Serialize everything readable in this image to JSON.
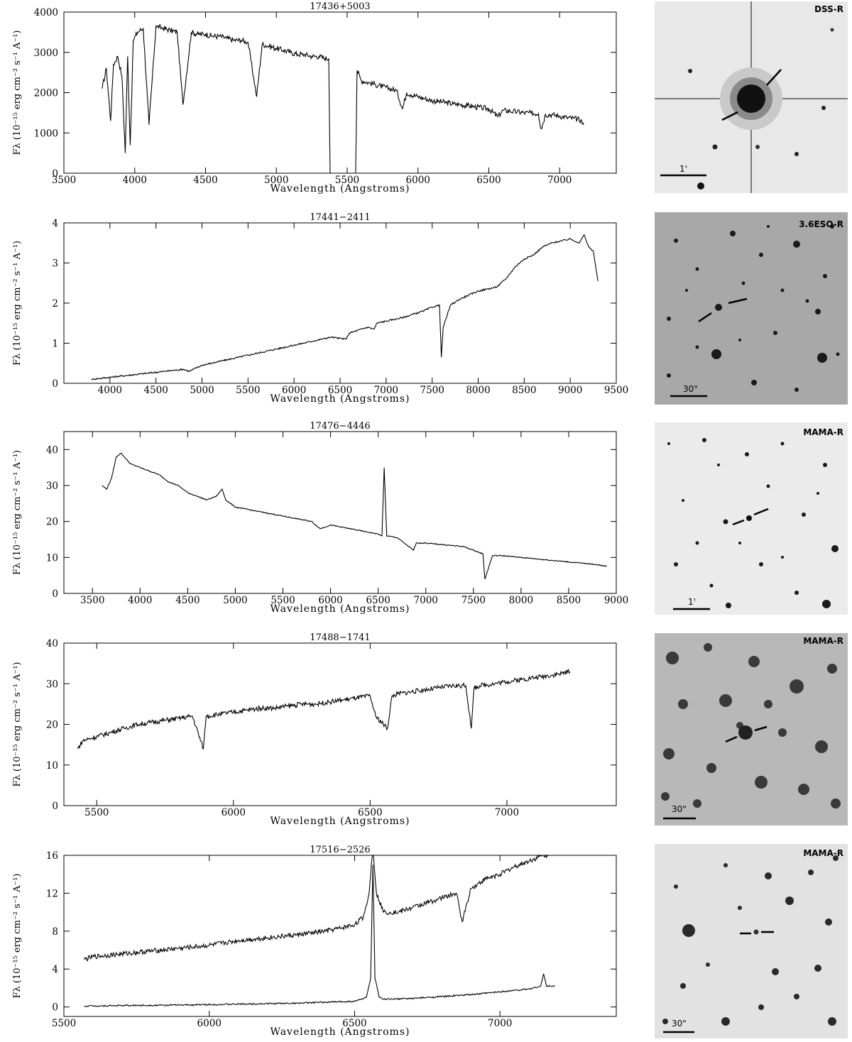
{
  "chart_data": [
    {
      "type": "line",
      "title": "17436+5003",
      "xlabel": "Wavelength (Angstroms)",
      "ylabel": "Fλ (10⁻¹⁵ erg cm⁻² s⁻¹ A⁻¹)",
      "xlim": [
        3500,
        7400
      ],
      "ylim": [
        0,
        4000
      ],
      "xticks": [
        3500,
        4000,
        4500,
        5000,
        5500,
        6000,
        6500,
        7000
      ],
      "yticks": [
        0,
        1000,
        2000,
        3000,
        4000
      ],
      "series": [
        {
          "x": [
            3770,
            3800,
            3830,
            3850,
            3880,
            3910,
            3933,
            3950,
            3968,
            3990,
            4020,
            4060,
            4101,
            4150,
            4200,
            4250,
            4300,
            4340,
            4400,
            4450,
            4500,
            4550,
            4600,
            4650,
            4700,
            4750,
            4800,
            4861,
            4900,
            4950,
            5000,
            5050,
            5100,
            5150,
            5200,
            5250,
            5300,
            5340,
            5370,
            5380
          ],
          "y": [
            2100,
            2600,
            1300,
            2700,
            2900,
            2400,
            500,
            2900,
            700,
            3300,
            3500,
            3600,
            1200,
            3650,
            3600,
            3550,
            3500,
            1700,
            3500,
            3450,
            3450,
            3400,
            3400,
            3350,
            3300,
            3300,
            3250,
            1900,
            3200,
            3150,
            3100,
            3050,
            3000,
            2950,
            2950,
            2900,
            2900,
            2850,
            2850,
            0
          ]
        },
        {
          "x": [
            5560,
            5570,
            5600,
            5650,
            5700,
            5750,
            5800,
            5850,
            5890,
            5920,
            5950,
            6000,
            6050,
            6100,
            6150,
            6200,
            6250,
            6300,
            6350,
            6400,
            6450,
            6500,
            6563,
            6600,
            6650,
            6700,
            6750,
            6800,
            6850,
            6870,
            6900,
            6950,
            7000,
            7050,
            7100,
            7150,
            7170
          ],
          "y": [
            0,
            2550,
            2300,
            2250,
            2200,
            2150,
            2100,
            2050,
            1600,
            2000,
            1950,
            1900,
            1850,
            1800,
            1780,
            1750,
            1720,
            1700,
            1680,
            1650,
            1620,
            1600,
            1400,
            1560,
            1540,
            1520,
            1500,
            1490,
            1480,
            1100,
            1460,
            1450,
            1420,
            1380,
            1360,
            1320,
            1200
          ]
        }
      ]
    },
    {
      "type": "line",
      "title": "17441−2411",
      "xlabel": "Wavelength (Angstroms)",
      "ylabel": "Fλ (10⁻¹⁵ erg cm⁻² s⁻¹ A⁻¹)",
      "xlim": [
        3500,
        9500
      ],
      "ylim": [
        0,
        4
      ],
      "xticks": [
        4000,
        4500,
        5000,
        5500,
        6000,
        6500,
        7000,
        7500,
        8000,
        8500,
        9000,
        9500
      ],
      "yticks": [
        0,
        1,
        2,
        3,
        4
      ],
      "series": [
        {
          "x": [
            3800,
            4000,
            4200,
            4400,
            4600,
            4800,
            4861,
            5000,
            5200,
            5400,
            5600,
            5800,
            6000,
            6200,
            6400,
            6563,
            6600,
            6800,
            6870,
            6900,
            7000,
            7200,
            7400,
            7500,
            7580,
            7600,
            7620,
            7700,
            7800,
            8000,
            8100,
            8200,
            8300,
            8400,
            8500,
            8600,
            8700,
            8800,
            8900,
            9000,
            9100,
            9150,
            9200,
            9250,
            9300
          ],
          "y": [
            0.1,
            0.15,
            0.2,
            0.25,
            0.3,
            0.35,
            0.3,
            0.45,
            0.55,
            0.65,
            0.75,
            0.85,
            0.95,
            1.05,
            1.15,
            1.1,
            1.25,
            1.4,
            1.35,
            1.5,
            1.55,
            1.65,
            1.8,
            1.9,
            1.95,
            0.65,
            1.4,
            1.95,
            2.1,
            2.3,
            2.35,
            2.4,
            2.6,
            2.9,
            3.1,
            3.2,
            3.4,
            3.5,
            3.55,
            3.6,
            3.5,
            3.7,
            3.4,
            3.3,
            2.55
          ]
        }
      ]
    },
    {
      "type": "line",
      "title": "17476−4446",
      "xlabel": "Wavelength (Angstroms)",
      "ylabel": "Fλ (10⁻¹⁵ erg cm⁻² s⁻¹ A⁻¹)",
      "xlim": [
        3200,
        9000
      ],
      "ylim": [
        0,
        45
      ],
      "xticks": [
        3500,
        4000,
        4500,
        5000,
        5500,
        6000,
        6500,
        7000,
        7500,
        8000,
        8500,
        9000
      ],
      "yticks": [
        0,
        10,
        20,
        30,
        40
      ],
      "series": [
        {
          "x": [
            3600,
            3650,
            3700,
            3750,
            3800,
            3900,
            4000,
            4100,
            4200,
            4300,
            4400,
            4500,
            4600,
            4700,
            4800,
            4861,
            4900,
            5000,
            5200,
            5400,
            5600,
            5800,
            5890,
            6000,
            6200,
            6400,
            6500,
            6540,
            6563,
            6590,
            6700,
            6870,
            6900,
            7000,
            7200,
            7400,
            7500,
            7600,
            7620,
            7700,
            7800,
            8000,
            8200,
            8400,
            8600,
            8800,
            8900
          ],
          "y": [
            30,
            29,
            32,
            38,
            39,
            36,
            35,
            34,
            33,
            31,
            30,
            28,
            27,
            26,
            27,
            29,
            26,
            24,
            23,
            22,
            21,
            20,
            18,
            19,
            18,
            17,
            16.5,
            16,
            35,
            16,
            15.5,
            12,
            14,
            14,
            13.5,
            13,
            12,
            11,
            4,
            10.5,
            10.5,
            10,
            9.5,
            9,
            8.5,
            8,
            7.5
          ]
        }
      ]
    },
    {
      "type": "line",
      "title": "17488−1741",
      "xlabel": "Wavelength (Angstroms)",
      "ylabel": "Fλ (10⁻¹⁵ erg cm⁻² s⁻¹ A⁻¹)",
      "xlim": [
        5380,
        7400
      ],
      "ylim": [
        0,
        40
      ],
      "xticks": [
        5500,
        6000,
        6500,
        7000
      ],
      "yticks": [
        0,
        10,
        20,
        30,
        40
      ],
      "series": [
        {
          "x": [
            5430,
            5450,
            5500,
            5550,
            5600,
            5650,
            5700,
            5750,
            5800,
            5850,
            5890,
            5900,
            5950,
            6000,
            6050,
            6100,
            6150,
            6200,
            6250,
            6300,
            6350,
            6400,
            6450,
            6500,
            6520,
            6563,
            6580,
            6600,
            6650,
            6700,
            6750,
            6800,
            6850,
            6870,
            6880,
            6900,
            6950,
            7000,
            7050,
            7100,
            7150,
            7200,
            7230
          ],
          "y": [
            14,
            16,
            17,
            18,
            19,
            20,
            20.5,
            21,
            21.5,
            22,
            14,
            22,
            22.5,
            23,
            23.5,
            24,
            24,
            24.5,
            25,
            25,
            25.5,
            26,
            26.5,
            27,
            22,
            19,
            27,
            27.5,
            28,
            28.5,
            29,
            29.5,
            29.5,
            19,
            29,
            29.5,
            30,
            30.5,
            31,
            31.5,
            32,
            32.5,
            33
          ]
        }
      ]
    },
    {
      "type": "line",
      "title": "17516−2526",
      "xlabel": "Wavelength (Angstroms)",
      "ylabel": "Fλ (10⁻¹⁵ erg cm⁻² s⁻¹ A⁻¹)",
      "xlim": [
        5500,
        7400
      ],
      "ylim": [
        -1,
        16
      ],
      "xticks": [
        5500,
        6000,
        6500,
        7000
      ],
      "yticks": [
        0,
        4,
        8,
        12,
        16
      ],
      "series": [
        {
          "x": [
            5570,
            5600,
            5700,
            5800,
            5900,
            6000,
            6100,
            6200,
            6300,
            6400,
            6450,
            6500,
            6530,
            6550,
            6563,
            6575,
            6600,
            6650,
            6700,
            6750,
            6800,
            6850,
            6870,
            6900,
            6950,
            7000,
            7050,
            7100,
            7150,
            7170
          ],
          "y": [
            5,
            5.3,
            5.6,
            5.9,
            6.2,
            6.5,
            7,
            7.3,
            7.6,
            8,
            8.3,
            8.7,
            9.5,
            12,
            17,
            12,
            10,
            10,
            10.5,
            11,
            11.5,
            12,
            9,
            12.5,
            13.5,
            14,
            14.8,
            15.4,
            16,
            16
          ]
        },
        {
          "x": [
            5570,
            5700,
            5900,
            6100,
            6300,
            6400,
            6500,
            6540,
            6555,
            6563,
            6570,
            6585,
            6600,
            6700,
            6800,
            6900,
            7000,
            7100,
            7140,
            7150,
            7160,
            7190
          ],
          "y": [
            0.1,
            0.15,
            0.2,
            0.3,
            0.4,
            0.5,
            0.6,
            1.0,
            3,
            15,
            3,
            1.0,
            0.8,
            0.9,
            1.1,
            1.3,
            1.6,
            1.9,
            2.2,
            3.5,
            2.2,
            2.2
          ]
        }
      ]
    }
  ],
  "finder_charts": [
    {
      "filter_label": "DSS-R",
      "scale_label": "1'"
    },
    {
      "filter_label": "3.6ESO-R",
      "scale_label": "30\""
    },
    {
      "filter_label": "MAMA-R",
      "scale_label": "1'"
    },
    {
      "filter_label": "MAMA-R",
      "scale_label": "30\""
    },
    {
      "filter_label": "MAMA-R",
      "scale_label": "30\""
    }
  ],
  "colors": {
    "line": "#000000",
    "background": "#ffffff"
  }
}
